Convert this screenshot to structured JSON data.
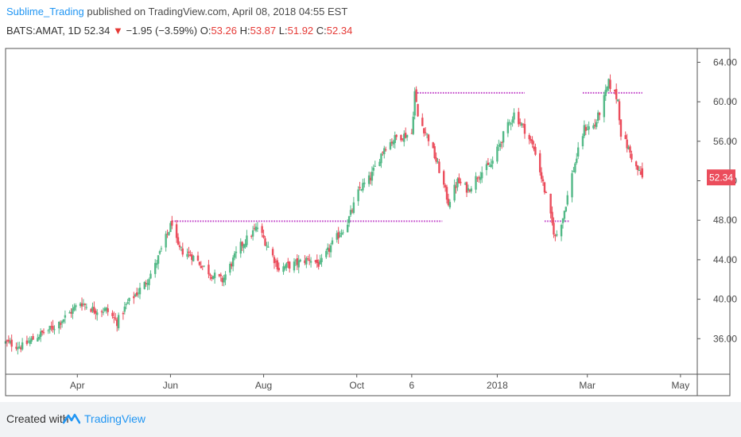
{
  "header": {
    "author": "Sublime_Trading",
    "published_text": " published on TradingView.com, April 08, 2018 04:55 EST",
    "symbol": "BATS:AMAT, 1D",
    "last": "52.34",
    "down_arrow": "▼",
    "change": "−1.95 (−3.59%)",
    "o_label": "O:",
    "o_value": "53.26",
    "h_label": "H:",
    "h_value": "53.87",
    "l_label": "L:",
    "l_value": "51.92",
    "c_label": "C:",
    "c_value": "52.34"
  },
  "footer": {
    "created_with": "Created with",
    "brand": "TradingView"
  },
  "colors": {
    "up": "#53b987",
    "down": "#eb4d5c",
    "level": "#c040c8",
    "axis_text": "#4a4a4a",
    "frame": "#555555",
    "price_tag": "#eb4d5c",
    "brand": "#2196f3"
  },
  "chart_data": {
    "type": "candlestick",
    "x_ticks": [
      {
        "label": "Apr",
        "date": "2017-04-01"
      },
      {
        "label": "Jun",
        "date": "2017-06-01"
      },
      {
        "label": "Aug",
        "date": "2017-08-01"
      },
      {
        "label": "Oct",
        "date": "2017-10-01"
      },
      {
        "label": "6",
        "date": "2017-11-06"
      },
      {
        "label": "2018",
        "date": "2018-01-01"
      },
      {
        "label": "Mar",
        "date": "2018-03-01"
      },
      {
        "label": "May",
        "date": "2018-05-01"
      }
    ],
    "y_ticks": [
      "36.00",
      "40.00",
      "44.00",
      "48.00",
      "52.00",
      "56.00",
      "60.00",
      "64.00"
    ],
    "y_range": [
      32.4,
      65.4
    ],
    "x_range": [
      "2017-02-13",
      "2018-05-12"
    ],
    "last_price_label": "52.34",
    "last_price": 52.34,
    "price_series": [
      [
        "2017-02-13",
        35.6
      ],
      [
        "2017-02-24",
        35.2
      ],
      [
        "2017-03-06",
        36.3
      ],
      [
        "2017-03-16",
        37.1
      ],
      [
        "2017-03-27",
        38.6
      ],
      [
        "2017-04-03",
        39.7
      ],
      [
        "2017-04-12",
        38.9
      ],
      [
        "2017-04-20",
        38.9
      ],
      [
        "2017-04-27",
        37.7
      ],
      [
        "2017-05-04",
        39.6
      ],
      [
        "2017-05-15",
        41.5
      ],
      [
        "2017-05-22",
        43.4
      ],
      [
        "2017-06-02",
        47.8
      ],
      [
        "2017-06-06",
        45.1
      ],
      [
        "2017-06-15",
        44.4
      ],
      [
        "2017-06-28",
        42.5
      ],
      [
        "2017-07-05",
        41.9
      ],
      [
        "2017-07-17",
        45.4
      ],
      [
        "2017-07-28",
        47.3
      ],
      [
        "2017-08-04",
        45.3
      ],
      [
        "2017-08-11",
        43.1
      ],
      [
        "2017-08-22",
        43.6
      ],
      [
        "2017-08-31",
        44.1
      ],
      [
        "2017-09-07",
        43.5
      ],
      [
        "2017-09-15",
        45.6
      ],
      [
        "2017-09-25",
        47.8
      ],
      [
        "2017-10-03",
        51.2
      ],
      [
        "2017-10-10",
        52.3
      ],
      [
        "2017-10-19",
        55.4
      ],
      [
        "2017-10-27",
        56.4
      ],
      [
        "2017-11-06",
        56.8
      ],
      [
        "2017-11-08",
        61.0
      ],
      [
        "2017-11-10",
        58.5
      ],
      [
        "2017-11-17",
        56.3
      ],
      [
        "2017-11-24",
        53.1
      ],
      [
        "2017-11-30",
        49.8
      ],
      [
        "2017-12-06",
        51.9
      ],
      [
        "2017-12-13",
        51.1
      ],
      [
        "2017-12-20",
        52.7
      ],
      [
        "2017-12-28",
        53.6
      ],
      [
        "2018-01-05",
        56.6
      ],
      [
        "2018-01-12",
        58.8
      ],
      [
        "2018-01-19",
        57.2
      ],
      [
        "2018-01-26",
        54.9
      ],
      [
        "2018-02-02",
        50.4
      ],
      [
        "2018-02-08",
        46.2
      ],
      [
        "2018-02-13",
        48.3
      ],
      [
        "2018-02-19",
        52.6
      ],
      [
        "2018-02-27",
        57.3
      ],
      [
        "2018-03-06",
        57.6
      ],
      [
        "2018-03-12",
        60.3
      ],
      [
        "2018-03-15",
        61.9
      ],
      [
        "2018-03-21",
        60.2
      ],
      [
        "2018-03-23",
        56.8
      ],
      [
        "2018-03-28",
        55.2
      ],
      [
        "2018-04-02",
        53.3
      ],
      [
        "2018-04-06",
        52.34
      ]
    ],
    "levels": [
      {
        "value": 47.9,
        "from": "2017-06-02",
        "to": "2017-11-26"
      },
      {
        "value": 47.9,
        "from": "2018-02-01",
        "to": "2018-02-17"
      },
      {
        "value": 60.9,
        "from": "2017-11-08",
        "to": "2018-01-19"
      },
      {
        "value": 60.9,
        "from": "2018-02-26",
        "to": "2018-04-06"
      }
    ]
  }
}
